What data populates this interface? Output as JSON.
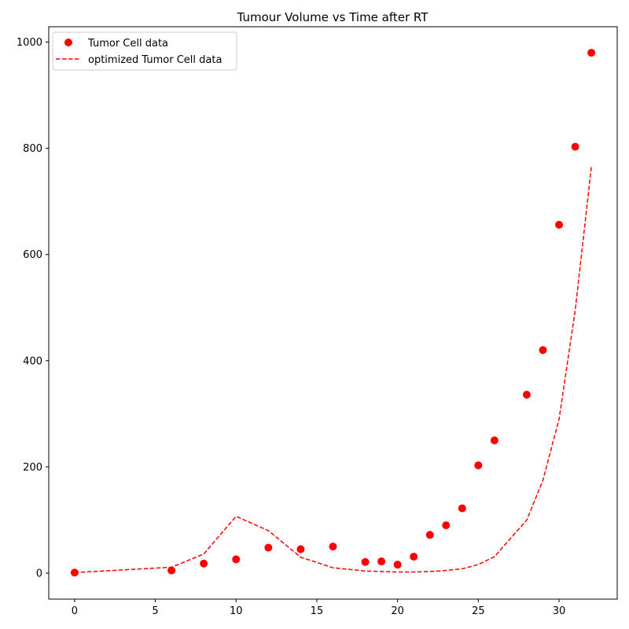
{
  "chart_data": {
    "type": "scatter",
    "title": "Tumour Volume vs Time after RT",
    "xlabel": "",
    "ylabel": "",
    "xlim": [
      -1.6,
      33.6
    ],
    "ylim": [
      -49,
      1029
    ],
    "xticks": [
      0,
      5,
      10,
      15,
      20,
      25,
      30
    ],
    "yticks": [
      0,
      200,
      400,
      600,
      800,
      1000
    ],
    "grid": false,
    "legend_position": "top-left",
    "series": [
      {
        "name": "Tumor Cell data",
        "style": "markers",
        "color": "#ff0000",
        "x": [
          0,
          6,
          8,
          10,
          12,
          14,
          16,
          18,
          19,
          20,
          21,
          22,
          23,
          24,
          25,
          26,
          28,
          29,
          30,
          31,
          32
        ],
        "y": [
          1,
          5,
          18,
          26,
          48,
          45,
          50,
          21,
          22,
          16,
          31,
          72,
          90,
          122,
          203,
          250,
          336,
          420,
          656,
          803,
          980
        ]
      },
      {
        "name": "optimized Tumor Cell data",
        "style": "dashed-line",
        "color": "#ff0000",
        "x": [
          0,
          6,
          8,
          10,
          12,
          14,
          16,
          18,
          19,
          20,
          21,
          22,
          23,
          24,
          25,
          26,
          28,
          29,
          30,
          31,
          32
        ],
        "y": [
          1,
          11,
          36,
          107,
          80,
          30,
          10,
          4,
          3,
          2,
          2,
          3,
          5,
          8,
          16,
          31,
          100,
          175,
          290,
          495,
          765
        ]
      }
    ]
  }
}
